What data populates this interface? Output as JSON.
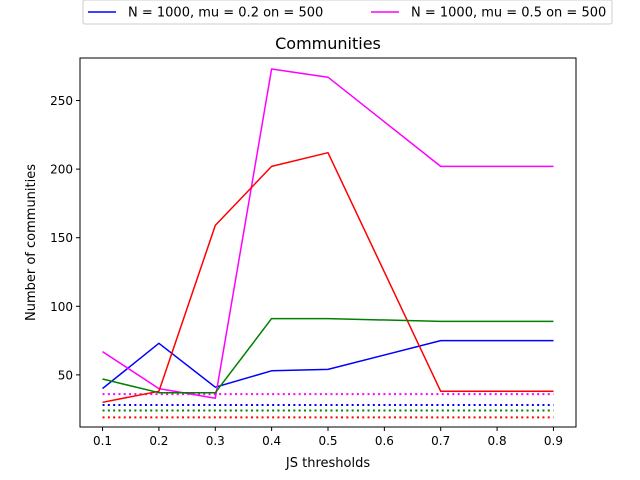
{
  "chart_data": {
    "type": "line",
    "title": "Communities",
    "xlabel": "JS thresholds",
    "ylabel": "Number of communities",
    "x": [
      0.1,
      0.2,
      0.3,
      0.4,
      0.5,
      0.7,
      0.9
    ],
    "xticks": [
      0.1,
      0.2,
      0.3,
      0.4,
      0.5,
      0.6,
      0.7,
      0.8,
      0.9
    ],
    "xtick_labels": [
      "0.1",
      "0.2",
      "0.3",
      "0.4",
      "0.5",
      "0.6",
      "0.7",
      "0.8",
      "0.9"
    ],
    "yticks": [
      50,
      100,
      150,
      200,
      250
    ],
    "ytick_labels": [
      "50",
      "100",
      "150",
      "200",
      "250"
    ],
    "xlim": [
      0.06,
      0.94
    ],
    "ylim": [
      12,
      281
    ],
    "grid": false,
    "legend_position": "above plot, top-center",
    "series": [
      {
        "name": "N = 1000, mu = 0.2 on = 500",
        "color": "#0000ff",
        "style": "solid",
        "values": [
          40,
          73,
          41,
          53,
          54,
          75,
          75
        ]
      },
      {
        "name": "N = 1000, mu = 0.5 on = 500",
        "color": "#ff00ff",
        "style": "solid",
        "values": [
          67,
          40,
          33,
          273,
          267,
          202,
          202
        ]
      },
      {
        "color": "#ff0000",
        "style": "solid",
        "values": [
          30,
          38,
          159,
          202,
          212,
          38,
          38
        ]
      },
      {
        "color": "#008000",
        "style": "solid",
        "values": [
          47,
          37,
          37,
          91,
          91,
          89,
          89
        ]
      }
    ],
    "reference_lines": [
      {
        "color": "#ff00ff",
        "style": "dotted",
        "y": 36
      },
      {
        "color": "#0000ff",
        "style": "dotted",
        "y": 28
      },
      {
        "color": "#008000",
        "style": "dotted",
        "y": 24
      },
      {
        "color": "#ff0000",
        "style": "dotted",
        "y": 19
      }
    ]
  }
}
